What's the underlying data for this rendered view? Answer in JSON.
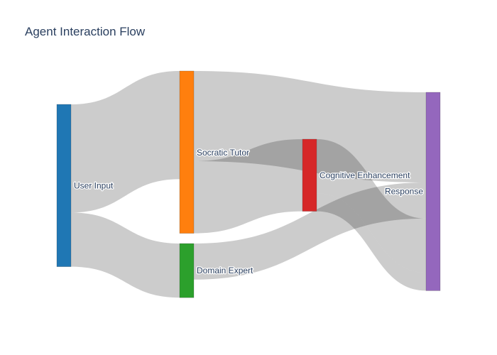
{
  "chart_data": {
    "type": "sankey",
    "title": "Agent Interaction Flow",
    "nodes": [
      {
        "id": "user_input",
        "label": "User Input",
        "color": "#1f77b4"
      },
      {
        "id": "socratic_tutor",
        "label": "Socratic Tutor",
        "color": "#ff7f0e"
      },
      {
        "id": "domain_expert",
        "label": "Domain Expert",
        "color": "#2ca02c"
      },
      {
        "id": "cognitive_enhancement",
        "label": "Cognitive Enhancement",
        "color": "#d62728"
      },
      {
        "id": "response",
        "label": "Response",
        "color": "#9467bd"
      }
    ],
    "links": [
      {
        "source": "user_input",
        "target": "socratic_tutor",
        "value": 60
      },
      {
        "source": "user_input",
        "target": "domain_expert",
        "value": 30
      },
      {
        "source": "socratic_tutor",
        "target": "response",
        "value": 50
      },
      {
        "source": "socratic_tutor",
        "target": "cognitive_enhancement",
        "value": 40
      },
      {
        "source": "domain_expert",
        "target": "response",
        "value": 20
      },
      {
        "source": "cognitive_enhancement",
        "target": "response",
        "value": 30
      },
      {
        "source": "cognitive_enhancement",
        "target": "response",
        "value": 10
      }
    ],
    "link_color": "rgba(0,0,0,0.2)"
  }
}
